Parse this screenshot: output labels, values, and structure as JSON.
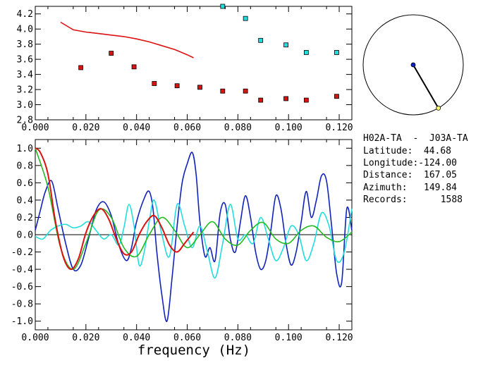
{
  "colors": {
    "red": "#dd1111",
    "cyan": "#22dddd",
    "blue": "#1122bb",
    "green": "#22bb22",
    "black": "#000000",
    "marker_stroke": "#000000",
    "endpoint_yellow": "#ffff66"
  },
  "info": {
    "pair": "H02A-TA  -  J03A-TA",
    "latitude_label": "Latitude:",
    "latitude_value": "44.68",
    "longitude_label": "Longitude:",
    "longitude_value": "-124.00",
    "distance_label": "Distance:",
    "distance_value": "167.05",
    "azimuth_label": "Azimuth:",
    "azimuth_value": "149.84",
    "records_label": "Records:",
    "records_value": "1588"
  },
  "compass": {
    "azimuth_deg": 149.84
  },
  "chart_data": [
    {
      "type": "scatter",
      "xlim": [
        0.0,
        0.125
      ],
      "ylim": [
        2.8,
        4.3
      ],
      "x_ticks": [
        "0.000",
        "0.020",
        "0.040",
        "0.060",
        "0.080",
        "0.100",
        "0.120"
      ],
      "y_ticks": [
        "2.8",
        "3.0",
        "3.2",
        "3.4",
        "3.6",
        "3.8",
        "4.0",
        "4.2"
      ],
      "curve": {
        "color": "red",
        "x": [
          0.01,
          0.015,
          0.02,
          0.025,
          0.03,
          0.035,
          0.04,
          0.045,
          0.05,
          0.055,
          0.06,
          0.0625
        ],
        "y": [
          4.09,
          3.99,
          3.96,
          3.94,
          3.92,
          3.9,
          3.87,
          3.83,
          3.78,
          3.73,
          3.66,
          3.62
        ]
      },
      "series": [
        {
          "color": "red",
          "x": [
            0.018,
            0.03,
            0.039,
            0.047,
            0.056,
            0.065,
            0.074,
            0.083,
            0.089,
            0.099,
            0.107,
            0.119
          ],
          "y": [
            3.49,
            3.68,
            3.5,
            3.28,
            3.25,
            3.23,
            3.18,
            3.18,
            3.06,
            3.08,
            3.06,
            3.11
          ]
        },
        {
          "color": "cyan",
          "x": [
            0.074,
            0.083,
            0.089,
            0.099,
            0.107,
            0.119
          ],
          "y": [
            4.3,
            4.14,
            3.85,
            3.79,
            3.69,
            3.69
          ]
        }
      ]
    },
    {
      "type": "line",
      "xlim": [
        0.0,
        0.125
      ],
      "ylim": [
        -1.1,
        1.1
      ],
      "xlabel": "frequency (Hz)",
      "x_ticks": [
        "0.000",
        "0.020",
        "0.040",
        "0.060",
        "0.080",
        "0.100",
        "0.120"
      ],
      "y_ticks": [
        "-1.0",
        "-0.8",
        "-0.6",
        "-0.4",
        "-0.2",
        "0.0",
        "0.2",
        "0.4",
        "0.6",
        "0.8",
        "1.0"
      ],
      "series": [
        {
          "color": "blue",
          "x": [
            0,
            0.002,
            0.004,
            0.0065,
            0.009,
            0.012,
            0.015,
            0.018,
            0.021,
            0.024,
            0.027,
            0.03,
            0.033,
            0.036,
            0.038,
            0.04,
            0.043,
            0.045,
            0.0465,
            0.048,
            0.05,
            0.052,
            0.054,
            0.056,
            0.058,
            0.06,
            0.062,
            0.0635,
            0.065,
            0.067,
            0.069,
            0.071,
            0.073,
            0.075,
            0.077,
            0.079,
            0.081,
            0.083,
            0.085,
            0.087,
            0.089,
            0.091,
            0.093,
            0.095,
            0.097,
            0.099,
            0.101,
            0.103,
            0.105,
            0.107,
            0.109,
            0.111,
            0.113,
            0.115,
            0.117,
            0.119,
            0.121,
            0.123,
            0.125
          ],
          "y": [
            0.05,
            0.28,
            0.5,
            0.62,
            0.3,
            -0.1,
            -0.4,
            -0.35,
            -0.05,
            0.28,
            0.38,
            0.22,
            -0.12,
            -0.3,
            -0.15,
            0.15,
            0.42,
            0.5,
            0.3,
            -0.2,
            -0.7,
            -1.0,
            -0.5,
            0.1,
            0.6,
            0.82,
            0.95,
            0.7,
            0.15,
            -0.25,
            -0.15,
            -0.3,
            0.25,
            0.35,
            -0.05,
            -0.2,
            0.15,
            0.45,
            0.2,
            -0.2,
            -0.4,
            -0.3,
            0.05,
            0.45,
            0.3,
            -0.1,
            -0.35,
            -0.2,
            0.15,
            0.5,
            0.2,
            0.4,
            0.68,
            0.62,
            0.1,
            -0.45,
            -0.55,
            0.3,
            0.05
          ]
        },
        {
          "color": "cyan",
          "x": [
            0,
            0.003,
            0.006,
            0.009,
            0.012,
            0.015,
            0.018,
            0.021,
            0.024,
            0.027,
            0.03,
            0.033,
            0.035,
            0.037,
            0.039,
            0.041,
            0.043,
            0.045,
            0.047,
            0.05,
            0.053,
            0.056,
            0.059,
            0.062,
            0.065,
            0.068,
            0.071,
            0.074,
            0.077,
            0.08,
            0.083,
            0.086,
            0.089,
            0.092,
            0.095,
            0.098,
            0.101,
            0.104,
            0.107,
            0.11,
            0.113,
            0.116,
            0.119,
            0.122,
            0.125
          ],
          "y": [
            -0.02,
            -0.05,
            0.05,
            0.1,
            0.12,
            0.08,
            0.1,
            0.15,
            0.05,
            -0.05,
            0.0,
            -0.12,
            0.08,
            0.35,
            0.1,
            -0.35,
            -0.2,
            0.15,
            0.4,
            0.0,
            -0.25,
            0.35,
            0.1,
            -0.15,
            0.1,
            -0.2,
            -0.5,
            -0.1,
            0.35,
            -0.05,
            0.0,
            -0.1,
            0.2,
            -0.05,
            -0.3,
            -0.15,
            0.1,
            0.0,
            -0.3,
            -0.1,
            0.25,
            0.1,
            -0.3,
            -0.2,
            0.3
          ]
        },
        {
          "color": "green",
          "x": [
            0,
            0.005,
            0.01,
            0.015,
            0.02,
            0.025,
            0.03,
            0.035,
            0.04,
            0.045,
            0.05,
            0.055,
            0.06,
            0.065,
            0.07,
            0.075,
            0.08,
            0.085,
            0.09,
            0.095,
            0.1,
            0.105,
            0.11,
            0.115,
            0.12,
            0.125
          ],
          "y": [
            1.0,
            0.55,
            -0.15,
            -0.4,
            -0.1,
            0.28,
            0.2,
            -0.15,
            -0.25,
            0.0,
            0.2,
            0.05,
            -0.15,
            0.0,
            0.15,
            -0.05,
            -0.12,
            0.05,
            0.14,
            -0.05,
            -0.1,
            0.05,
            0.1,
            -0.03,
            -0.08,
            0.03
          ]
        },
        {
          "color": "red",
          "x": [
            0,
            0.002,
            0.005,
            0.008,
            0.011,
            0.014,
            0.017,
            0.02,
            0.023,
            0.026,
            0.029,
            0.032,
            0.035,
            0.038,
            0.041,
            0.044,
            0.047,
            0.05,
            0.053,
            0.056,
            0.059,
            0.0625
          ],
          "y": [
            1.0,
            0.95,
            0.7,
            0.15,
            -0.25,
            -0.4,
            -0.28,
            0.02,
            0.22,
            0.3,
            0.18,
            -0.05,
            -0.22,
            -0.2,
            0.0,
            0.15,
            0.22,
            0.08,
            -0.12,
            -0.2,
            -0.1,
            0.03
          ]
        }
      ]
    }
  ]
}
